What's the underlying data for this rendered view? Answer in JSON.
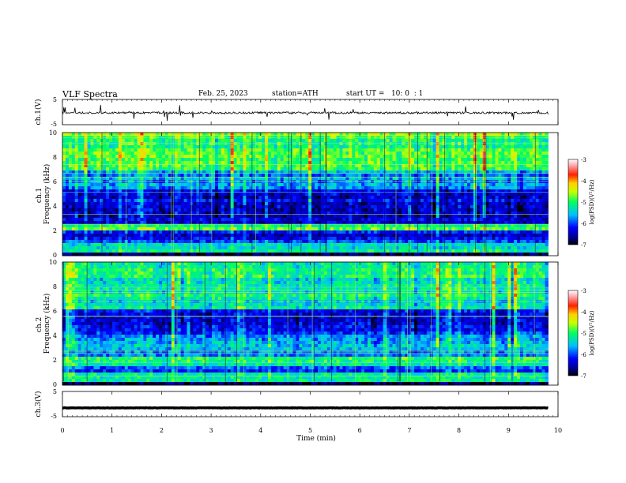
{
  "header": {
    "title": "VLF Spectra",
    "date": "Feb. 25, 2023",
    "station": "station=ATH",
    "start_ut": "start UT =   10: 0  : 1"
  },
  "colorbar": {
    "label": "log(PSD)(V²/Hz)",
    "ticks": [
      "-3",
      "-4",
      "-5",
      "-6",
      "-7"
    ]
  },
  "chart_data": [
    {
      "type": "line",
      "name": "ch1-waveform",
      "ylabel": "ch.1(V)",
      "ylim": [
        -5,
        5
      ],
      "ytick_labels": [
        "5",
        "-5"
      ],
      "xlim": [
        0,
        10
      ],
      "x_extent": [
        0,
        9.8
      ],
      "baseline": -0.3,
      "noise_amplitude": 0.8,
      "grid": false
    },
    {
      "type": "heatmap",
      "name": "ch1-spectrogram",
      "ylabel": "ch.1\nFrequency (kHz)",
      "ylim": [
        0,
        10
      ],
      "ytick_labels": [
        "10",
        "8",
        "6",
        "4",
        "2",
        "0"
      ],
      "xlim": [
        0,
        10
      ],
      "x_extent": [
        0,
        9.8
      ],
      "color_scale": "log PSD, -7 to -3 (jet)",
      "bands": [
        {
          "f": [
            0.0,
            0.2
          ],
          "level": -7.0
        },
        {
          "f": [
            0.2,
            0.9
          ],
          "level": -5.3
        },
        {
          "f": [
            0.9,
            2.0
          ],
          "level": -6.2
        },
        {
          "f": [
            2.0,
            2.5
          ],
          "level": -5.0
        },
        {
          "f": [
            2.5,
            5.3
          ],
          "level": -6.4
        },
        {
          "f": [
            5.3,
            7.0
          ],
          "level": -5.8
        },
        {
          "f": [
            7.0,
            10.0
          ],
          "level": -4.9
        }
      ]
    },
    {
      "type": "heatmap",
      "name": "ch2-spectrogram",
      "ylabel": "ch.2\nFrequency (kHz)",
      "ylim": [
        0,
        10
      ],
      "ytick_labels": [
        "10",
        "8",
        "6",
        "4",
        "2",
        "0"
      ],
      "xlim": [
        0,
        10
      ],
      "x_extent": [
        0,
        9.8
      ],
      "color_scale": "log PSD, -7 to -3 (jet)",
      "bands": [
        {
          "f": [
            0.0,
            0.2
          ],
          "level": -7.0
        },
        {
          "f": [
            0.2,
            1.0
          ],
          "level": -5.4
        },
        {
          "f": [
            1.0,
            1.5
          ],
          "level": -6.0
        },
        {
          "f": [
            1.5,
            2.2
          ],
          "level": -5.0
        },
        {
          "f": [
            2.2,
            4.0
          ],
          "level": -5.7
        },
        {
          "f": [
            4.0,
            6.2
          ],
          "level": -6.3
        },
        {
          "f": [
            6.2,
            10.0
          ],
          "level": -5.2
        }
      ]
    },
    {
      "type": "line",
      "name": "ch3-waveform",
      "ylabel": "ch.3(V)",
      "ylim": [
        -5,
        5
      ],
      "ytick_labels": [
        "5",
        "-5"
      ],
      "xlim": [
        0,
        10
      ],
      "x_extent": [
        0,
        9.8
      ],
      "baseline": -1.5,
      "noise_amplitude": 0.15,
      "grid": false
    }
  ],
  "xaxis": {
    "label": "Time (min)",
    "ticks": [
      "0",
      "1",
      "2",
      "3",
      "4",
      "5",
      "6",
      "7",
      "8",
      "9",
      "10"
    ]
  }
}
